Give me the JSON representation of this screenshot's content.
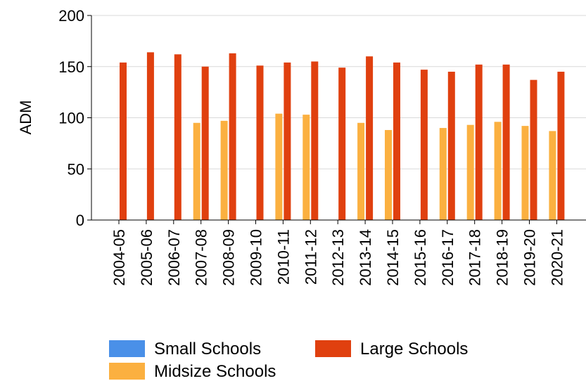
{
  "chart_data": {
    "type": "bar",
    "title": "",
    "xlabel": "",
    "ylabel": "ADM",
    "ylim": [
      0,
      200
    ],
    "yticks": [
      0,
      50,
      100,
      150,
      200
    ],
    "grid": true,
    "legend_position": "bottom",
    "categories": [
      "2004-05",
      "2005-06",
      "2006-07",
      "2007-08",
      "2008-09",
      "2009-10",
      "2010-11",
      "2011-12",
      "2012-13",
      "2013-14",
      "2014-15",
      "2015-16",
      "2016-17",
      "2017-18",
      "2018-19",
      "2019-20",
      "2020-21"
    ],
    "series": [
      {
        "name": "Small Schools",
        "color": "#4a90e8",
        "values": [
          null,
          null,
          null,
          null,
          null,
          null,
          null,
          null,
          null,
          null,
          null,
          null,
          null,
          null,
          null,
          null,
          null
        ]
      },
      {
        "name": "Midsize Schools",
        "color": "#fbb040",
        "values": [
          null,
          null,
          null,
          95,
          97,
          null,
          104,
          103,
          null,
          95,
          88,
          null,
          90,
          93,
          96,
          92,
          87
        ]
      },
      {
        "name": "Large Schools",
        "color": "#e0400f",
        "values": [
          154,
          164,
          162,
          150,
          163,
          151,
          154,
          155,
          149,
          160,
          154,
          147,
          145,
          152,
          152,
          137,
          145
        ]
      }
    ]
  }
}
